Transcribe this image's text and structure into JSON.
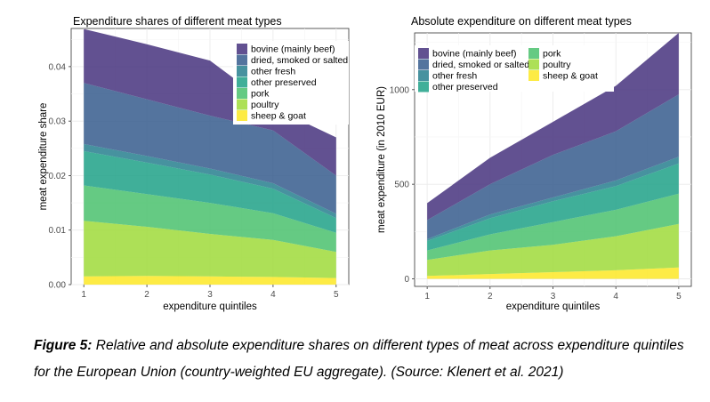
{
  "chart_data": [
    {
      "type": "area",
      "stacked": true,
      "title": "Expenditure shares of different meat types",
      "xlabel": "expenditure quintiles",
      "ylabel": "meat expenditure share",
      "x": [
        1,
        2,
        3,
        4,
        5
      ],
      "xticks": [
        "1",
        "2",
        "3",
        "4",
        "5"
      ],
      "ylim": [
        0,
        0.047
      ],
      "yticks": [
        "0.00",
        "0.01",
        "0.02",
        "0.03",
        "0.04"
      ],
      "ytick_values": [
        0,
        0.01,
        0.02,
        0.03,
        0.04
      ],
      "grid": true,
      "legend_position": "top-right",
      "series": [
        {
          "name": "sheep & goat",
          "color": "#FDE725",
          "values": [
            0.0015,
            0.0016,
            0.0015,
            0.0014,
            0.0012
          ]
        },
        {
          "name": "poultry",
          "color": "#9FDA3A",
          "values": [
            0.0102,
            0.009,
            0.0078,
            0.0068,
            0.0048
          ]
        },
        {
          "name": "pork",
          "color": "#4AC16D",
          "values": [
            0.0065,
            0.006,
            0.0057,
            0.0049,
            0.0035
          ]
        },
        {
          "name": "other preserved",
          "color": "#1FA187",
          "values": [
            0.0063,
            0.0058,
            0.0052,
            0.0045,
            0.0027
          ]
        },
        {
          "name": "other fresh",
          "color": "#277F8E",
          "values": [
            0.0013,
            0.0012,
            0.0011,
            0.001,
            0.0008
          ]
        },
        {
          "name": "dried, smoked or salted",
          "color": "#365C8D",
          "values": [
            0.0112,
            0.0104,
            0.0097,
            0.0097,
            0.007
          ]
        },
        {
          "name": "bovine (mainly beef)",
          "color": "#46337E",
          "values": [
            0.0099,
            0.0101,
            0.0101,
            0.0042,
            0.007
          ]
        }
      ],
      "legend_order": [
        "bovine (mainly beef)",
        "dried, smoked or salted",
        "other fresh",
        "other preserved",
        "pork",
        "poultry",
        "sheep & goat"
      ]
    },
    {
      "type": "area",
      "stacked": true,
      "title": "Absolute expenditure on different meat types",
      "xlabel": "expenditure quintiles",
      "ylabel": "meat expenditure (in 2010 EUR)",
      "x": [
        1,
        2,
        3,
        4,
        5
      ],
      "xticks": [
        "1",
        "2",
        "3",
        "4",
        "5"
      ],
      "ylim": [
        -40,
        1300
      ],
      "yticks": [
        "0",
        "500",
        "1000"
      ],
      "ytick_values": [
        0,
        500,
        1000
      ],
      "grid": true,
      "legend_position": "top-left",
      "series": [
        {
          "name": "sheep & goat",
          "color": "#FDE725",
          "values": [
            15,
            25,
            35,
            45,
            60
          ]
        },
        {
          "name": "poultry",
          "color": "#9FDA3A",
          "values": [
            85,
            125,
            145,
            180,
            230
          ]
        },
        {
          "name": "pork",
          "color": "#4AC16D",
          "values": [
            50,
            85,
            120,
            140,
            160
          ]
        },
        {
          "name": "other preserved",
          "color": "#1FA187",
          "values": [
            50,
            85,
            110,
            125,
            160
          ]
        },
        {
          "name": "other fresh",
          "color": "#277F8E",
          "values": [
            10,
            20,
            20,
            30,
            35
          ]
        },
        {
          "name": "dried, smoked or salted",
          "color": "#365C8D",
          "values": [
            100,
            160,
            225,
            260,
            330
          ]
        },
        {
          "name": "bovine (mainly beef)",
          "color": "#46337E",
          "values": [
            90,
            140,
            175,
            240,
            325
          ]
        }
      ],
      "legend_order": [
        "bovine (mainly beef)",
        "dried, smoked or salted",
        "other fresh",
        "other preserved",
        "pork",
        "poultry",
        "sheep & goat"
      ]
    }
  ],
  "caption": {
    "label": "Figure 5:",
    "text": " Relative and absolute expenditure shares on different types of meat across expenditure quintiles for the European Union (country-weighted EU aggregate). (Source: Klenert et al. 2021)"
  }
}
